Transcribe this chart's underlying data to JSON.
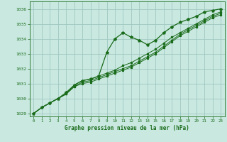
{
  "title": "Graphe pression niveau de la mer (hPa)",
  "bg_color": "#c8e8e0",
  "grid_color": "#a0c8c0",
  "line_color": "#1a6b1a",
  "marker_color": "#1a6b1a",
  "xlim": [
    -0.5,
    23.5
  ],
  "ylim": [
    1028.8,
    1036.5
  ],
  "yticks": [
    1029,
    1030,
    1031,
    1032,
    1033,
    1034,
    1035,
    1036
  ],
  "xticks": [
    0,
    1,
    2,
    3,
    4,
    5,
    6,
    7,
    8,
    9,
    10,
    11,
    12,
    13,
    14,
    15,
    16,
    17,
    18,
    19,
    20,
    21,
    22,
    23
  ],
  "series": [
    [
      1029.0,
      1029.4,
      1029.7,
      1030.0,
      1030.4,
      1030.9,
      1031.2,
      1031.3,
      1031.5,
      1033.1,
      1034.0,
      1034.4,
      1034.1,
      1033.9,
      1033.6,
      1033.9,
      1034.4,
      1034.8,
      1035.1,
      1035.3,
      1035.5,
      1035.8,
      1035.9,
      1036.0
    ],
    [
      1029.0,
      1029.4,
      1029.7,
      1030.0,
      1030.3,
      1030.8,
      1031.1,
      1031.2,
      1031.4,
      1031.6,
      1031.8,
      1032.0,
      1032.2,
      1032.5,
      1032.8,
      1033.1,
      1033.5,
      1033.9,
      1034.3,
      1034.6,
      1034.9,
      1035.2,
      1035.5,
      1035.7
    ],
    [
      1029.0,
      1029.4,
      1029.7,
      1030.0,
      1030.3,
      1030.8,
      1031.0,
      1031.1,
      1031.3,
      1031.5,
      1031.7,
      1031.9,
      1032.1,
      1032.4,
      1032.7,
      1033.0,
      1033.4,
      1033.8,
      1034.2,
      1034.5,
      1034.8,
      1035.1,
      1035.4,
      1035.6
    ],
    [
      1029.0,
      1029.4,
      1029.7,
      1030.0,
      1030.3,
      1030.9,
      1031.2,
      1031.3,
      1031.5,
      1031.7,
      1031.9,
      1032.2,
      1032.4,
      1032.7,
      1033.0,
      1033.3,
      1033.7,
      1034.1,
      1034.4,
      1034.7,
      1035.0,
      1035.3,
      1035.6,
      1035.8
    ]
  ]
}
